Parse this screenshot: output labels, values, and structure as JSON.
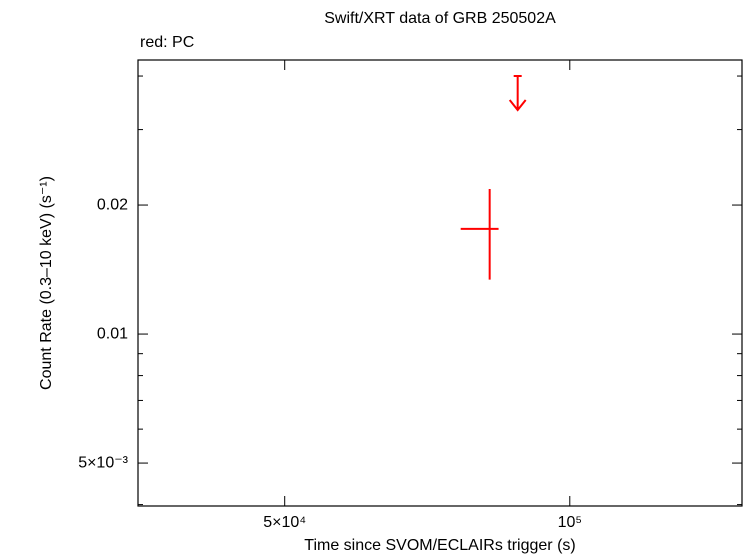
{
  "chart_data": {
    "type": "scatter",
    "title": "Swift/XRT data of GRB 250502A",
    "legend_text": "red: PC",
    "xlabel": "Time since SVOM/ECLAIRs trigger (s)",
    "ylabel": "Count Rate (0.3–10 keV) (s⁻¹)",
    "xscale": "log",
    "yscale": "log",
    "xlim": [
      35000,
      152000
    ],
    "ylim": [
      0.00397,
      0.0436
    ],
    "xticks": [
      {
        "value": 50000,
        "label": "5×10⁴"
      },
      {
        "value": 100000,
        "label": "10⁵"
      }
    ],
    "yticks": [
      {
        "value": 0.005,
        "label": "5×10⁻³"
      },
      0.01,
      0.02
    ],
    "yminorticks": [
      0.004,
      0.006,
      0.007,
      0.008,
      0.009,
      0.03,
      0.04
    ],
    "series": [
      {
        "name": "PC",
        "color": "#ff0000",
        "x": [
          82300
        ],
        "xerr_minus": [
          5600
        ],
        "xerr_plus": [
          1800
        ],
        "y": [
          0.0176
        ],
        "yerr": [
          0.0042
        ]
      }
    ],
    "upper_limits": {
      "color": "#ff0000",
      "x": [
        88100
      ],
      "y": [
        0.04
      ]
    }
  }
}
